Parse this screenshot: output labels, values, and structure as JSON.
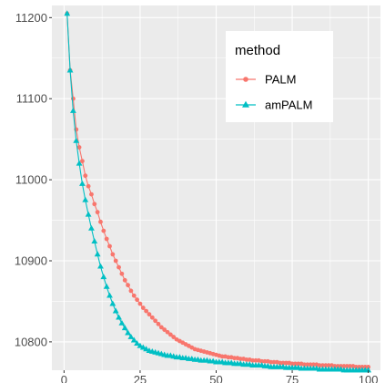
{
  "chart_data": {
    "type": "line",
    "title": "",
    "xlabel": "",
    "ylabel": "",
    "xlim": [
      -4,
      104
    ],
    "ylim": [
      10765,
      11215
    ],
    "x_ticks": [
      0,
      25,
      50,
      75,
      100
    ],
    "x_tick_labels": [
      "0",
      "25",
      "50",
      "75",
      "100"
    ],
    "y_ticks": [
      10800,
      10900,
      11000,
      11100,
      11200
    ],
    "y_tick_labels": [
      "10800",
      "10900",
      "11000",
      "11100",
      "11200"
    ],
    "grid": true,
    "legend": {
      "title": "method",
      "position": "top-right"
    },
    "series": [
      {
        "name": "PALM",
        "color": "#F8766D",
        "marker": "circle",
        "x": [
          1,
          2,
          3,
          4,
          5,
          6,
          7,
          8,
          9,
          10,
          11,
          12,
          13,
          14,
          15,
          16,
          17,
          18,
          19,
          20,
          21,
          22,
          23,
          24,
          25,
          26,
          27,
          28,
          29,
          30,
          31,
          32,
          33,
          34,
          35,
          36,
          37,
          38,
          39,
          40,
          41,
          42,
          43,
          44,
          45,
          46,
          47,
          48,
          49,
          50,
          51,
          52,
          53,
          54,
          55,
          56,
          57,
          58,
          59,
          60,
          61,
          62,
          63,
          64,
          65,
          66,
          67,
          68,
          69,
          70,
          71,
          72,
          73,
          74,
          75,
          76,
          77,
          78,
          79,
          80,
          81,
          82,
          83,
          84,
          85,
          86,
          87,
          88,
          89,
          90,
          91,
          92,
          93,
          94,
          95,
          96,
          97,
          98,
          99,
          100
        ],
        "values": [
          11205,
          11135,
          11100,
          11062,
          11040,
          11023,
          11005,
          10992,
          10982,
          10970,
          10960,
          10948,
          10937,
          10927,
          10918,
          10908,
          10900,
          10892,
          10884,
          10876,
          10870,
          10863,
          10857,
          10852,
          10847,
          10842,
          10838,
          10834,
          10830,
          10826,
          10822,
          10818,
          10815,
          10812,
          10809,
          10806,
          10803,
          10801,
          10799,
          10797,
          10795,
          10793,
          10791,
          10790,
          10789,
          10788,
          10787,
          10786,
          10785,
          10784,
          10783,
          10782,
          10782,
          10781,
          10781,
          10780,
          10780,
          10779,
          10779,
          10778,
          10778,
          10777,
          10777,
          10777,
          10776,
          10776,
          10776,
          10775,
          10775,
          10775,
          10774,
          10774,
          10774,
          10774,
          10773,
          10773,
          10773,
          10773,
          10772,
          10772,
          10772,
          10772,
          10772,
          10771,
          10771,
          10771,
          10771,
          10771,
          10770,
          10770,
          10770,
          10770,
          10770,
          10770,
          10770,
          10769,
          10769,
          10769,
          10769,
          10769
        ]
      },
      {
        "name": "amPALM",
        "color": "#00BFC4",
        "marker": "triangle",
        "x": [
          1,
          2,
          3,
          4,
          5,
          6,
          7,
          8,
          9,
          10,
          11,
          12,
          13,
          14,
          15,
          16,
          17,
          18,
          19,
          20,
          21,
          22,
          23,
          24,
          25,
          26,
          27,
          28,
          29,
          30,
          31,
          32,
          33,
          34,
          35,
          36,
          37,
          38,
          39,
          40,
          41,
          42,
          43,
          44,
          45,
          46,
          47,
          48,
          49,
          50,
          51,
          52,
          53,
          54,
          55,
          56,
          57,
          58,
          59,
          60,
          61,
          62,
          63,
          64,
          65,
          66,
          67,
          68,
          69,
          70,
          71,
          72,
          73,
          74,
          75,
          76,
          77,
          78,
          79,
          80,
          81,
          82,
          83,
          84,
          85,
          86,
          87,
          88,
          89,
          90,
          91,
          92,
          93,
          94,
          95,
          96,
          97,
          98,
          99,
          100
        ],
        "values": [
          11205,
          11135,
          11085,
          11048,
          11020,
          10995,
          10975,
          10957,
          10940,
          10924,
          10908,
          10893,
          10880,
          10868,
          10857,
          10847,
          10838,
          10830,
          10823,
          10817,
          10811,
          10806,
          10802,
          10798,
          10795,
          10793,
          10791,
          10789,
          10788,
          10787,
          10786,
          10785,
          10784,
          10783,
          10783,
          10782,
          10781,
          10781,
          10780,
          10780,
          10779,
          10779,
          10778,
          10778,
          10777,
          10777,
          10777,
          10776,
          10776,
          10775,
          10775,
          10775,
          10774,
          10774,
          10774,
          10773,
          10773,
          10773,
          10772,
          10772,
          10772,
          10771,
          10771,
          10771,
          10771,
          10770,
          10770,
          10769,
          10769,
          10769,
          10769,
          10769,
          10768,
          10768,
          10768,
          10768,
          10768,
          10767,
          10767,
          10767,
          10767,
          10767,
          10767,
          10766,
          10766,
          10766,
          10766,
          10766,
          10766,
          10766,
          10766,
          10765,
          10765,
          10765,
          10765,
          10765,
          10765,
          10765,
          10765,
          10765
        ]
      }
    ]
  }
}
